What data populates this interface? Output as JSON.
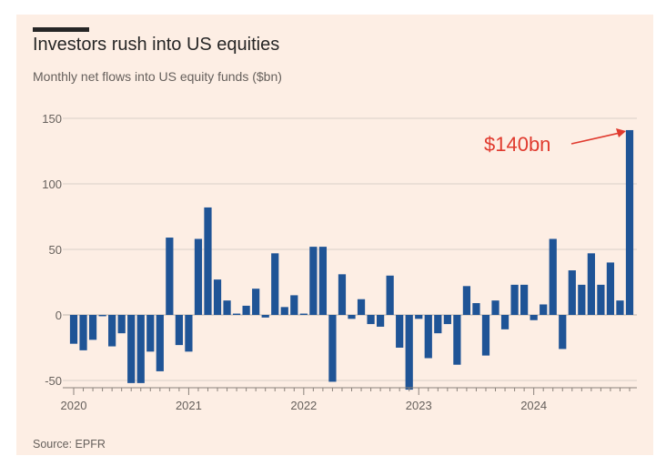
{
  "header": {
    "title": "Investors rush into US equities",
    "subtitle": "Monthly net flows into US equity funds ($bn)"
  },
  "footer": {
    "source": "Source: EPFR"
  },
  "colors": {
    "background": "#fdeee4",
    "bar": "#1f5496",
    "annotation": "#e03a2e",
    "grid": "#d9d0c8"
  },
  "chart_data": {
    "type": "bar",
    "title": "Investors rush into US equities",
    "subtitle": "Monthly net flows into US equity funds ($bn)",
    "xlabel": "",
    "ylabel": "",
    "ylim": [
      -55,
      150
    ],
    "yticks": [
      150,
      100,
      50,
      0,
      -50
    ],
    "xtick_labels": [
      "2020",
      "2021",
      "2022",
      "2023",
      "2024"
    ],
    "grid": "horizontal",
    "annotation": {
      "text": "$140bn",
      "target_index": 58
    },
    "categories": [
      "2020-01",
      "2020-02",
      "2020-03",
      "2020-04",
      "2020-05",
      "2020-06",
      "2020-07",
      "2020-08",
      "2020-09",
      "2020-10",
      "2020-11",
      "2020-12",
      "2021-01",
      "2021-02",
      "2021-03",
      "2021-04",
      "2021-05",
      "2021-06",
      "2021-07",
      "2021-08",
      "2021-09",
      "2021-10",
      "2021-11",
      "2021-12",
      "2022-01",
      "2022-02",
      "2022-03",
      "2022-04",
      "2022-05",
      "2022-06",
      "2022-07",
      "2022-08",
      "2022-09",
      "2022-10",
      "2022-11",
      "2022-12",
      "2023-01",
      "2023-02",
      "2023-03",
      "2023-04",
      "2023-05",
      "2023-06",
      "2023-07",
      "2023-08",
      "2023-09",
      "2023-10",
      "2023-11",
      "2023-12",
      "2024-01",
      "2024-02",
      "2024-03",
      "2024-04",
      "2024-05",
      "2024-06",
      "2024-07",
      "2024-08",
      "2024-09",
      "2024-10",
      "2024-11"
    ],
    "values": [
      -22,
      -27,
      -19,
      -1,
      -24,
      -14,
      -52,
      -52,
      -28,
      -43,
      59,
      -23,
      -28,
      58,
      82,
      27,
      11,
      1,
      7,
      20,
      -2,
      47,
      6,
      15,
      1,
      52,
      52,
      -51,
      31,
      -3,
      12,
      -7,
      -9,
      30,
      -25,
      -57,
      -3,
      -33,
      -14,
      -7,
      -38,
      22,
      9,
      -31,
      11,
      -11,
      23,
      23,
      -4,
      8,
      58,
      -26,
      34,
      23,
      47,
      23,
      40,
      11,
      141
    ]
  }
}
